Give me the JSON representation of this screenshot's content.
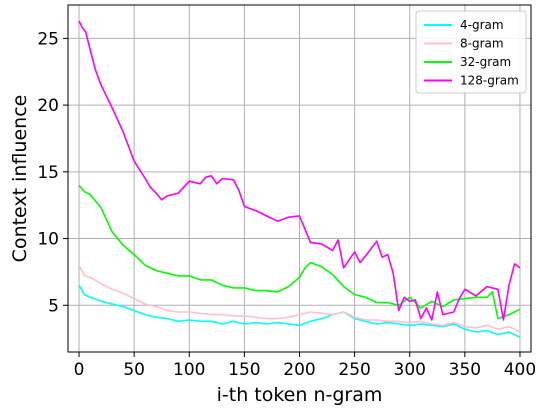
{
  "chart_data": {
    "type": "line",
    "title": "",
    "xlabel": "i-th token n-gram",
    "ylabel": "Context influence",
    "xlim": [
      -10,
      410
    ],
    "ylim": [
      1.5,
      27.5
    ],
    "xticks": [
      0,
      50,
      100,
      150,
      200,
      250,
      300,
      350,
      400
    ],
    "yticks": [
      5,
      10,
      15,
      20,
      25
    ],
    "grid": true,
    "legend_position": "top-right",
    "series": [
      {
        "name": "4-gram",
        "color": "#00ffff",
        "x": [
          0,
          5,
          10,
          20,
          30,
          40,
          50,
          60,
          70,
          80,
          90,
          100,
          110,
          120,
          130,
          140,
          150,
          160,
          170,
          180,
          190,
          200,
          210,
          220,
          230,
          240,
          250,
          260,
          270,
          280,
          290,
          300,
          310,
          320,
          330,
          340,
          350,
          360,
          370,
          380,
          390,
          400
        ],
        "y": [
          6.5,
          5.8,
          5.6,
          5.3,
          5.1,
          4.9,
          4.6,
          4.3,
          4.1,
          4.0,
          3.8,
          3.9,
          3.8,
          3.8,
          3.6,
          3.8,
          3.6,
          3.7,
          3.6,
          3.7,
          3.6,
          3.5,
          3.8,
          4.0,
          4.3,
          4.5,
          4.0,
          3.8,
          3.6,
          3.7,
          3.6,
          3.5,
          3.6,
          3.5,
          3.4,
          3.6,
          3.2,
          3.0,
          3.1,
          2.8,
          3.0,
          2.6
        ]
      },
      {
        "name": "8-gram",
        "color": "#ffc0cb",
        "x": [
          0,
          5,
          10,
          20,
          30,
          40,
          50,
          60,
          70,
          80,
          90,
          100,
          110,
          120,
          130,
          140,
          150,
          160,
          170,
          180,
          190,
          200,
          210,
          220,
          230,
          240,
          250,
          260,
          270,
          280,
          290,
          300,
          310,
          320,
          330,
          340,
          350,
          360,
          370,
          380,
          390,
          400
        ],
        "y": [
          8.0,
          7.2,
          7.1,
          6.6,
          6.2,
          5.9,
          5.5,
          5.1,
          4.9,
          4.6,
          4.5,
          4.5,
          4.4,
          4.3,
          4.3,
          4.2,
          4.2,
          4.1,
          4.0,
          4.0,
          4.1,
          4.3,
          4.5,
          4.4,
          4.3,
          4.5,
          4.1,
          3.9,
          3.9,
          3.8,
          3.8,
          3.7,
          3.8,
          3.6,
          3.5,
          3.7,
          3.4,
          3.3,
          3.5,
          3.2,
          3.4,
          3.0
        ]
      },
      {
        "name": "32-gram",
        "color": "#00ff00",
        "x": [
          0,
          5,
          10,
          20,
          30,
          40,
          50,
          60,
          70,
          80,
          90,
          100,
          110,
          120,
          130,
          140,
          150,
          160,
          170,
          180,
          190,
          200,
          205,
          210,
          220,
          230,
          240,
          250,
          260,
          270,
          280,
          290,
          300,
          310,
          320,
          330,
          340,
          350,
          360,
          370,
          375,
          380,
          390,
          400
        ],
        "y": [
          14.0,
          13.5,
          13.3,
          12.3,
          10.5,
          9.5,
          8.8,
          8.0,
          7.6,
          7.4,
          7.2,
          7.2,
          6.9,
          6.9,
          6.5,
          6.3,
          6.3,
          6.1,
          6.1,
          6.0,
          6.4,
          7.1,
          7.8,
          8.2,
          7.9,
          7.3,
          6.4,
          5.8,
          5.6,
          5.2,
          5.2,
          5.0,
          5.6,
          4.8,
          5.3,
          4.9,
          5.4,
          5.5,
          5.6,
          5.6,
          6.0,
          4.0,
          4.3,
          4.7
        ]
      },
      {
        "name": "128-gram",
        "color": "#ff00ff",
        "x": [
          0,
          3,
          6,
          10,
          15,
          20,
          30,
          40,
          50,
          60,
          65,
          70,
          75,
          80,
          90,
          100,
          110,
          115,
          120,
          125,
          130,
          140,
          145,
          150,
          160,
          170,
          180,
          190,
          200,
          205,
          210,
          220,
          230,
          235,
          240,
          250,
          255,
          260,
          270,
          275,
          280,
          285,
          290,
          295,
          300,
          305,
          310,
          315,
          320,
          325,
          330,
          340,
          345,
          350,
          360,
          370,
          380,
          385,
          390,
          395,
          400
        ],
        "y": [
          26.3,
          25.8,
          25.5,
          24.2,
          22.6,
          21.5,
          19.8,
          18.0,
          15.8,
          14.5,
          13.8,
          13.4,
          12.9,
          13.2,
          13.4,
          14.3,
          14.1,
          14.6,
          14.7,
          14.1,
          14.5,
          14.4,
          13.6,
          12.4,
          12.1,
          11.7,
          11.3,
          11.6,
          11.7,
          10.7,
          9.7,
          9.6,
          9.1,
          9.9,
          7.8,
          9.0,
          8.2,
          8.7,
          9.8,
          8.6,
          8.8,
          7.4,
          4.6,
          5.6,
          5.3,
          5.4,
          4.0,
          4.8,
          3.9,
          6.0,
          4.3,
          4.5,
          5.5,
          6.2,
          5.7,
          6.4,
          6.2,
          3.9,
          6.5,
          8.1,
          7.8
        ]
      }
    ]
  }
}
